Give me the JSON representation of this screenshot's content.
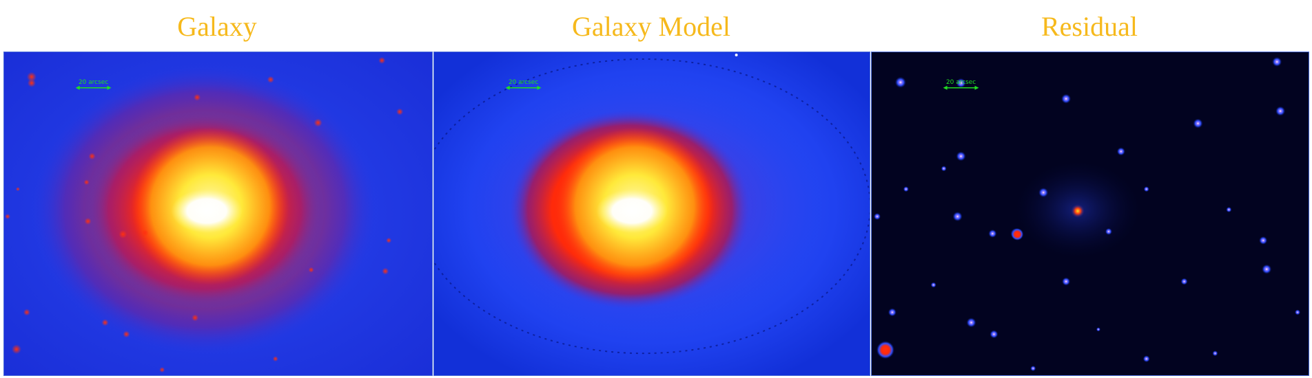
{
  "panels": [
    {
      "title": "Galaxy",
      "scale_label": "20 arcsec",
      "kind": "galaxy"
    },
    {
      "title": "Galaxy Model",
      "scale_label": "20 arcsec",
      "kind": "model"
    },
    {
      "title": "Residual",
      "scale_label": "20 arcsec",
      "kind": "residual"
    }
  ],
  "colors": {
    "title": "#f6b91c",
    "scalebar": "#22dd22",
    "background_blue": "#1d3df5",
    "residual_background": "#020320",
    "core_white": "#ffffff",
    "mid_yellow": "#fff23a",
    "outer_red": "#ff2a0a"
  }
}
